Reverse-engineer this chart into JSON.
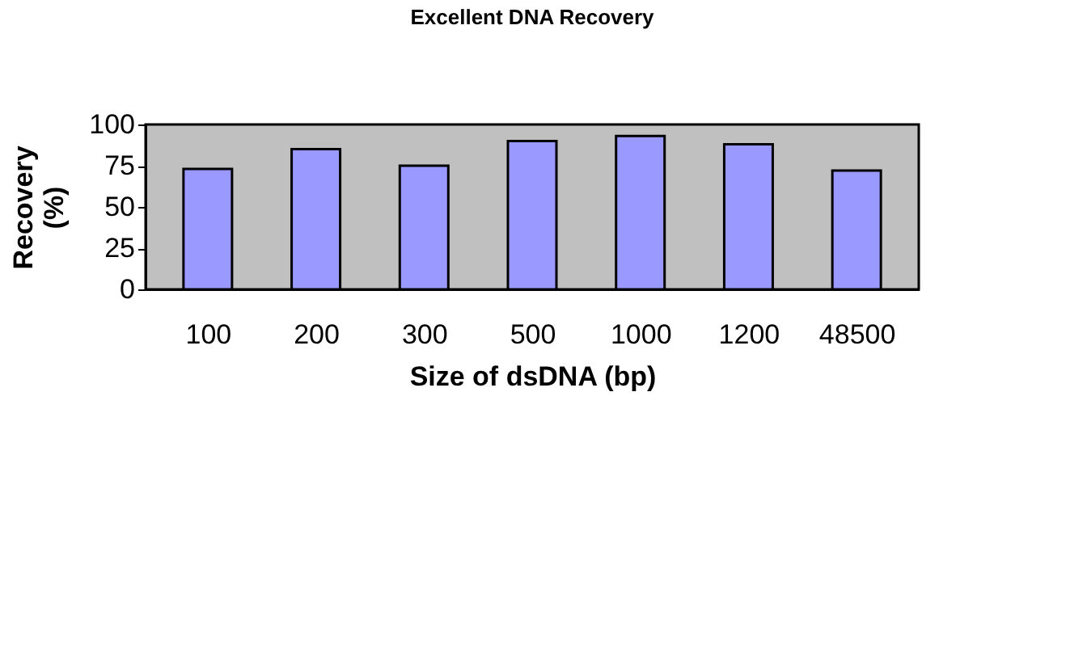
{
  "chart_data": {
    "type": "bar",
    "title": "Excellent DNA Recovery",
    "xlabel": "Size of dsDNA (bp)",
    "ylabel": "Recovery (%)",
    "categories": [
      "100",
      "200",
      "300",
      "500",
      "1000",
      "1200",
      "48500"
    ],
    "values": [
      73,
      85,
      75,
      90,
      93,
      88,
      72
    ],
    "color": "#9999ff",
    "ylim": [
      0,
      100
    ],
    "yticks": [
      0,
      25,
      50,
      75,
      100
    ],
    "grid": false
  }
}
